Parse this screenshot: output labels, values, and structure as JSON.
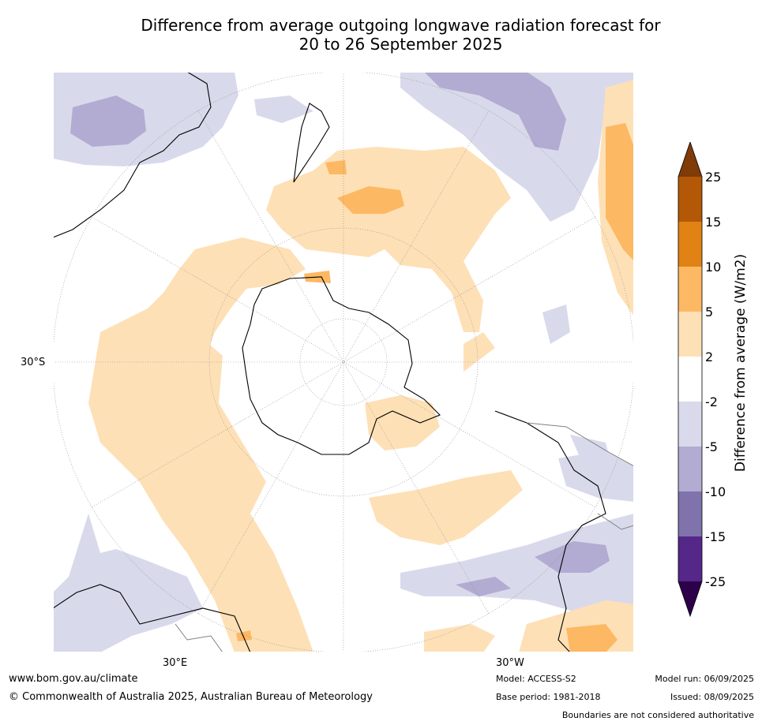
{
  "title": {
    "line1": "Difference from average outgoing longwave radiation forecast for",
    "line2": "20 to 26 September 2025"
  },
  "map": {
    "projection": "south-polar-stereographic",
    "lat_label": "30°S",
    "lon_labels": {
      "left": "30°E",
      "right": "30°W"
    },
    "colors": {
      "land_outline": "#000000",
      "graticule": "#888888",
      "boundary": "#808080"
    }
  },
  "colorbar": {
    "label": "Difference from average (W/m2)",
    "ticks": [
      "25",
      "15",
      "10",
      "5",
      "2",
      "-2",
      "-5",
      "-10",
      "-15",
      "-25"
    ],
    "bins": [
      {
        "range": ">25",
        "color": "#7f3b08"
      },
      {
        "range": "15 to 25",
        "color": "#b35806"
      },
      {
        "range": "10 to 15",
        "color": "#e08214"
      },
      {
        "range": "5 to 10",
        "color": "#fdb863"
      },
      {
        "range": "2 to 5",
        "color": "#fee0b6"
      },
      {
        "range": "-2 to 2",
        "color": "#ffffff"
      },
      {
        "range": "-5 to -2",
        "color": "#d8daeb"
      },
      {
        "range": "-10 to -5",
        "color": "#b2abd2"
      },
      {
        "range": "-15 to -10",
        "color": "#8073ac"
      },
      {
        "range": "-25 to -15",
        "color": "#542788"
      },
      {
        "range": "<-25",
        "color": "#2d004b"
      }
    ]
  },
  "footer": {
    "url": "www.bom.gov.au/climate",
    "copyright": "© Commonwealth of Australia 2025, Australian Bureau of Meteorology",
    "model": "Model: ACCESS-S2",
    "base_period": "Base period: 1981-2018",
    "model_run": "Model run: 06/09/2025",
    "issued": "Issued: 08/09/2025",
    "disclaimer": "Boundaries are not considered authoritative"
  }
}
